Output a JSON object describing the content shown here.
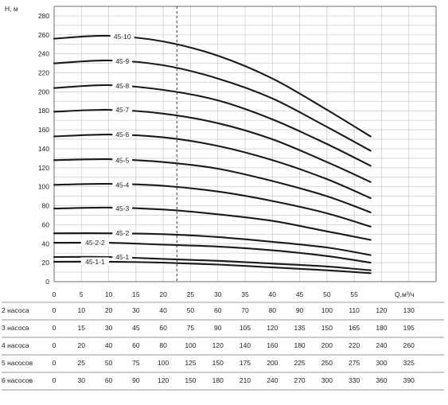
{
  "chart_data": {
    "type": "line",
    "ylabel": "H, м",
    "xlabel": "Q,м³/ч",
    "xlim": [
      0,
      70
    ],
    "ylim": [
      0,
      290
    ],
    "yticks": [
      0,
      20,
      40,
      60,
      80,
      100,
      120,
      140,
      160,
      180,
      200,
      220,
      240,
      260,
      280
    ],
    "xticks": [
      0,
      5,
      10,
      15,
      20,
      25,
      30,
      35,
      40,
      45,
      50,
      55,
      60,
      65
    ],
    "xticks_labels": [
      "0",
      "5",
      "10",
      "15",
      "20",
      "25",
      "30",
      "35",
      "40",
      "45",
      "50",
      "55",
      "",
      ""
    ],
    "grid": true,
    "marker_line_x": 22.5,
    "series": [
      {
        "name": "45-1-1",
        "x": [
          0,
          10,
          20,
          30,
          40,
          50,
          58
        ],
        "y": [
          21,
          21,
          20,
          18,
          15,
          12,
          9
        ]
      },
      {
        "name": "45-1",
        "x": [
          0,
          10,
          20,
          30,
          40,
          50,
          58
        ],
        "y": [
          26,
          26,
          24,
          22,
          19,
          16,
          12
        ]
      },
      {
        "name": "45-2-2",
        "x": [
          0,
          10,
          20,
          30,
          40,
          50,
          58
        ],
        "y": [
          41,
          41,
          39,
          37,
          33,
          27,
          20
        ]
      },
      {
        "name": "45-2",
        "x": [
          0,
          10,
          20,
          30,
          40,
          50,
          58
        ],
        "y": [
          51,
          51,
          50,
          47,
          42,
          36,
          28
        ]
      },
      {
        "name": "45-3",
        "x": [
          0,
          10,
          20,
          30,
          40,
          50,
          58
        ],
        "y": [
          77,
          78,
          76,
          71,
          64,
          53,
          44
        ]
      },
      {
        "name": "45-4",
        "x": [
          0,
          10,
          20,
          30,
          40,
          50,
          58
        ],
        "y": [
          102,
          103,
          101,
          95,
          85,
          72,
          58
        ]
      },
      {
        "name": "45-5",
        "x": [
          0,
          10,
          20,
          30,
          40,
          50,
          58
        ],
        "y": [
          128,
          129,
          126,
          119,
          106,
          90,
          73
        ]
      },
      {
        "name": "45-6",
        "x": [
          0,
          10,
          20,
          30,
          40,
          50,
          58
        ],
        "y": [
          153,
          155,
          152,
          143,
          128,
          108,
          88
        ]
      },
      {
        "name": "45-7",
        "x": [
          0,
          10,
          20,
          30,
          40,
          50,
          58
        ],
        "y": [
          179,
          181,
          177,
          167,
          150,
          126,
          105
        ]
      },
      {
        "name": "45-8",
        "x": [
          0,
          10,
          20,
          30,
          40,
          50,
          58
        ],
        "y": [
          204,
          207,
          202,
          191,
          171,
          145,
          122
        ]
      },
      {
        "name": "45-9",
        "x": [
          0,
          10,
          20,
          30,
          40,
          50,
          58
        ],
        "y": [
          230,
          233,
          228,
          214,
          193,
          163,
          138
        ]
      },
      {
        "name": "45-10",
        "x": [
          0,
          10,
          20,
          30,
          40,
          50,
          58
        ],
        "y": [
          256,
          259,
          253,
          238,
          214,
          181,
          153
        ]
      }
    ],
    "label_positions": [
      {
        "name": "45-1-1",
        "x": 7.5,
        "y": 21
      },
      {
        "name": "45-1",
        "x": 12.5,
        "y": 26
      },
      {
        "name": "45-2-2",
        "x": 7.5,
        "y": 41
      },
      {
        "name": "45-2",
        "x": 12.5,
        "y": 51
      },
      {
        "name": "45-3",
        "x": 12.5,
        "y": 77
      },
      {
        "name": "45-4",
        "x": 12.5,
        "y": 102
      },
      {
        "name": "45-5",
        "x": 12.5,
        "y": 128
      },
      {
        "name": "45-6",
        "x": 12.5,
        "y": 155
      },
      {
        "name": "45-7",
        "x": 12.5,
        "y": 181
      },
      {
        "name": "45-8",
        "x": 12.5,
        "y": 206
      },
      {
        "name": "45-9",
        "x": 12.5,
        "y": 232
      },
      {
        "name": "45-10",
        "x": 12.5,
        "y": 258
      }
    ],
    "pump_table": [
      {
        "label": "2 насоса",
        "values": [
          "0",
          "10",
          "20",
          "30",
          "40",
          "50",
          "60",
          "70",
          "80",
          "90",
          "100",
          "110",
          "120",
          "130"
        ]
      },
      {
        "label": "3 насоса",
        "values": [
          "0",
          "15",
          "30",
          "45",
          "60",
          "75",
          "90",
          "105",
          "120",
          "135",
          "150",
          "165",
          "180",
          "195"
        ]
      },
      {
        "label": "4 насоса",
        "values": [
          "0",
          "20",
          "40",
          "60",
          "80",
          "100",
          "120",
          "140",
          "160",
          "180",
          "200",
          "220",
          "240",
          "260"
        ]
      },
      {
        "label": "5 насосов",
        "values": [
          "0",
          "25",
          "50",
          "75",
          "100",
          "125",
          "150",
          "175",
          "200",
          "225",
          "250",
          "275",
          "300",
          "325"
        ]
      },
      {
        "label": "6 насосов",
        "values": [
          "0",
          "30",
          "60",
          "90",
          "120",
          "150",
          "180",
          "210",
          "240",
          "270",
          "300",
          "330",
          "360",
          "390"
        ]
      }
    ]
  }
}
